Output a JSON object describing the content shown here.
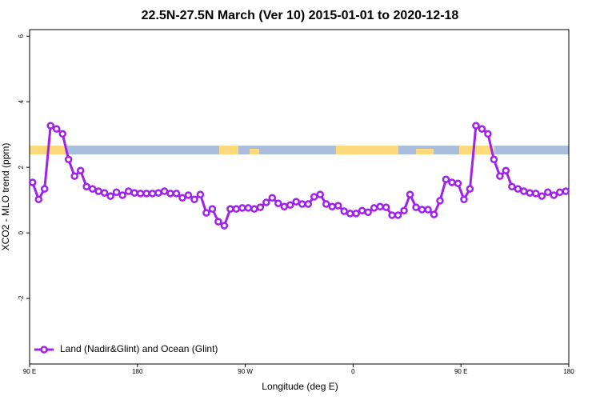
{
  "chart_data": {
    "type": "line",
    "title": "22.5N-27.5N March (Ver 10)   2015-01-01 to 2020-12-18",
    "x_label": "Longitude (deg E)",
    "y_label": "XCO2 - MLO trend (ppm)",
    "xlim": [
      90,
      540
    ],
    "ylim": [
      -4,
      6.2
    ],
    "xticks": [
      {
        "value": 90,
        "label": "90 E"
      },
      180,
      {
        "value": 270,
        "label": "90 W"
      },
      {
        "value": 360,
        "label": "0"
      },
      {
        "value": 450,
        "label": "90 E"
      },
      {
        "value": 540,
        "label": "180"
      }
    ],
    "yticks": [
      -2,
      0,
      2,
      4,
      6
    ],
    "legend": "bottom-left",
    "x": [
      92.5,
      97.5,
      102.5,
      107.5,
      112.5,
      117.5,
      122.5,
      127.5,
      132.5,
      137.5,
      142.5,
      147.5,
      152.5,
      157.5,
      162.5,
      167.5,
      172.5,
      177.5,
      182.5,
      187.5,
      192.5,
      197.5,
      202.5,
      207.5,
      212.5,
      217.5,
      222.5,
      227.5,
      232.5,
      237.5,
      242.5,
      247.5,
      252.5,
      257.5,
      262.5,
      267.5,
      272.5,
      277.5,
      282.5,
      287.5,
      292.5,
      297.5,
      302.5,
      307.5,
      312.5,
      317.5,
      322.5,
      327.5,
      332.5,
      337.5,
      342.5,
      347.5,
      352.5,
      357.5,
      362.5,
      367.5,
      372.5,
      377.5,
      382.5,
      387.5,
      392.5,
      397.5,
      402.5,
      407.5,
      412.5,
      417.5,
      422.5,
      427.5,
      432.5,
      437.5,
      442.5,
      447.5,
      452.5,
      457.5,
      462.5,
      467.5,
      472.5,
      477.5,
      482.5,
      487.5,
      492.5,
      497.5,
      502.5,
      507.5,
      512.5,
      517.5,
      522.5,
      527.5,
      532.5,
      537.5
    ],
    "series": [
      {
        "name": "Land (Nadir&Glint) and Ocean (Glint)",
        "color": "#a020f0",
        "values": [
          1.54,
          1.02,
          1.34,
          3.27,
          3.17,
          3.02,
          2.24,
          1.73,
          1.9,
          1.41,
          1.34,
          1.27,
          1.22,
          1.12,
          1.24,
          1.15,
          1.27,
          1.22,
          1.2,
          1.2,
          1.2,
          1.22,
          1.27,
          1.2,
          1.2,
          1.07,
          1.15,
          1.02,
          1.17,
          0.61,
          0.73,
          0.34,
          0.22,
          0.73,
          0.73,
          0.76,
          0.76,
          0.73,
          0.78,
          0.93,
          1.07,
          0.9,
          0.8,
          0.85,
          0.95,
          0.88,
          0.88,
          1.1,
          1.17,
          0.88,
          0.8,
          0.83,
          0.66,
          0.59,
          0.59,
          0.68,
          0.63,
          0.76,
          0.8,
          0.78,
          0.54,
          0.54,
          0.68,
          1.17,
          0.78,
          0.71,
          0.71,
          0.56,
          0.98,
          1.63,
          1.54,
          1.51,
          1.02,
          1.34,
          3.27,
          3.17,
          3.02,
          2.24,
          1.73,
          1.9,
          1.41,
          1.34,
          1.27,
          1.22,
          1.2,
          1.12,
          1.24,
          1.15,
          1.24,
          1.27
        ]
      }
    ]
  }
}
